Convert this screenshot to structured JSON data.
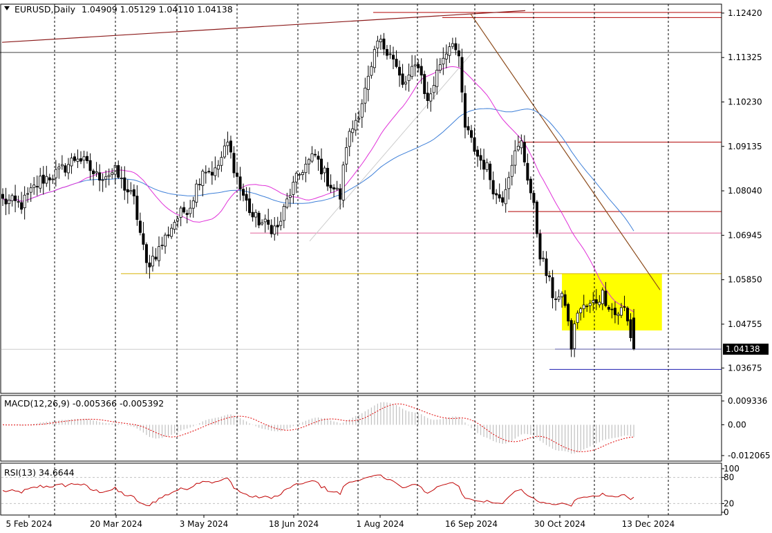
{
  "chart_data": [
    {
      "type": "candlestick",
      "symbol": "EURUSD",
      "timeframe": "Daily",
      "header": {
        "symbol_label": "EURUSD,Daily",
        "ohlc_text": "1.04909 1.05129 1.04110 1.04138"
      },
      "last_price": "1.04138",
      "price_ticks": [
        "1.12420",
        "1.11325",
        "1.10230",
        "1.09135",
        "1.08040",
        "1.06945",
        "1.05850",
        "1.04755",
        "1.03675"
      ],
      "price_range": [
        1.0305,
        1.1264
      ],
      "date_labels": [
        "5 Feb 2024",
        "20 Mar 2024",
        "3 May 2024",
        "18 Jun 2024",
        "1 Aug 2024",
        "16 Sep 2024",
        "30 Oct 2024",
        "13 Dec 2024"
      ],
      "candles": {
        "count": 222,
        "fields": [
          "open",
          "high",
          "low",
          "close"
        ],
        "description": "daily OHLC path (approximate, read from chart)",
        "keypoints": [
          [
            0,
            1.078
          ],
          [
            6,
            1.077
          ],
          [
            12,
            1.083
          ],
          [
            18,
            1.085
          ],
          [
            24,
            1.089
          ],
          [
            30,
            1.084
          ],
          [
            36,
            1.085
          ],
          [
            42,
            1.078
          ],
          [
            46,
            1.062
          ],
          [
            50,
            1.066
          ],
          [
            55,
            1.073
          ],
          [
            60,
            1.077
          ],
          [
            64,
            1.086
          ],
          [
            68,
            1.085
          ],
          [
            72,
            1.092
          ],
          [
            76,
            1.081
          ],
          [
            80,
            1.074
          ],
          [
            84,
            1.072
          ],
          [
            88,
            1.071
          ],
          [
            92,
            1.08
          ],
          [
            96,
            1.086
          ],
          [
            100,
            1.089
          ],
          [
            104,
            1.083
          ],
          [
            108,
            1.079
          ],
          [
            110,
            1.092
          ],
          [
            114,
            1.1
          ],
          [
            118,
            1.11
          ],
          [
            120,
            1.117
          ],
          [
            124,
            1.115
          ],
          [
            128,
            1.106
          ],
          [
            133,
            1.112
          ],
          [
            136,
            1.102
          ],
          [
            140,
            1.112
          ],
          [
            144,
            1.118
          ],
          [
            146,
            1.112
          ],
          [
            148,
            1.096
          ],
          [
            152,
            1.089
          ],
          [
            155,
            1.086
          ],
          [
            158,
            1.079
          ],
          [
            160,
            1.079
          ],
          [
            163,
            1.088
          ],
          [
            166,
            1.092
          ],
          [
            170,
            1.076
          ],
          [
            172,
            1.065
          ],
          [
            176,
            1.055
          ],
          [
            180,
            1.053
          ],
          [
            182,
            1.042
          ],
          [
            184,
            1.051
          ],
          [
            188,
            1.052
          ],
          [
            192,
            1.055
          ],
          [
            196,
            1.05
          ],
          [
            199,
            1.0514
          ],
          [
            202,
            1.0414
          ]
        ]
      },
      "moving_averages": [
        {
          "color": "#3d7fd8",
          "role": "slow moving average"
        },
        {
          "color": "#e030d8",
          "role": "fast moving average"
        }
      ],
      "horizontal_lines": [
        {
          "price": 1.12435,
          "color": "#b00000"
        },
        {
          "price": 1.1231,
          "color": "#b00000"
        },
        {
          "price": 1.1145,
          "color": "#404040"
        },
        {
          "price": 1.0924,
          "color": "#b00000"
        },
        {
          "price": 1.0753,
          "color": "#b00000"
        },
        {
          "price": 1.07,
          "color": "#e0609a"
        },
        {
          "price": 1.06,
          "color": "#d8b000"
        },
        {
          "price": 1.04138,
          "color": "#1a1ab0"
        },
        {
          "price": 1.0364,
          "color": "#1a1ab0"
        }
      ],
      "range_box": {
        "price_top": 1.06,
        "price_bottom": 1.046,
        "color": "#ffff00"
      },
      "trendlines": [
        {
          "color": "#8b1a1a",
          "desc": "rising resistance line across the highs"
        },
        {
          "color": "#8b4a1a",
          "desc": "falling line from the September high"
        },
        {
          "color": "#cccccc",
          "desc": "rising support line under the summer lows"
        }
      ],
      "grid": true,
      "background": "#ffffff"
    },
    {
      "type": "histogram",
      "name": "MACD(12,26,9)",
      "label": "MACD(12,26,9) -0.005366 -0.005392",
      "ticks": [
        "0.009336",
        "0.00",
        "-0.012065"
      ],
      "range": [
        -0.012065,
        0.009336
      ],
      "main_value": -0.005366,
      "signal_value": -0.005392,
      "histogram_color": "#c0c0c0",
      "signal_color": "#e00000"
    },
    {
      "type": "line",
      "name": "RSI(13)",
      "label": "RSI(13) 34.6644",
      "value": 34.6644,
      "ticks": [
        "100",
        "80",
        "20",
        "0"
      ],
      "levels": [
        80,
        20
      ],
      "color": "#c00000"
    }
  ]
}
